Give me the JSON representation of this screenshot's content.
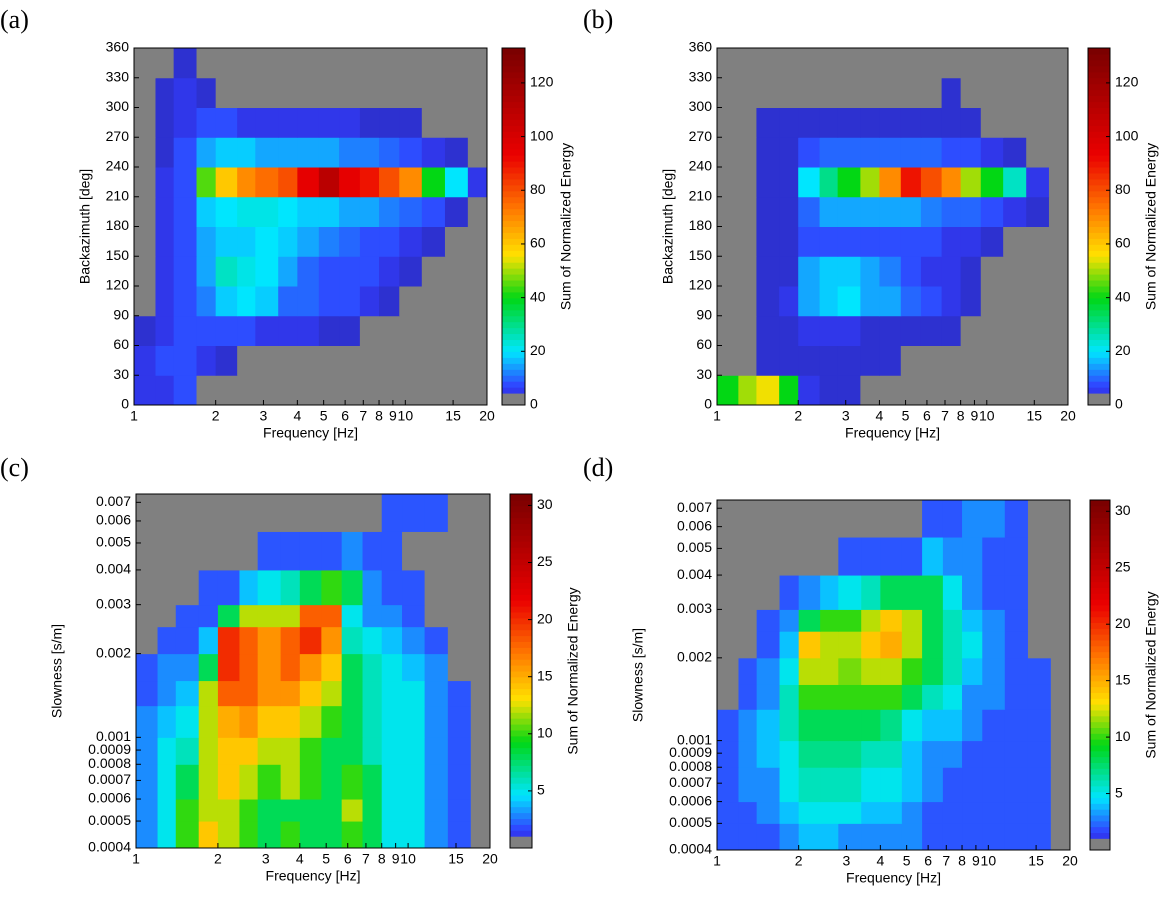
{
  "chart_data": [
    {
      "type": "heatmap",
      "panel_label": "(a)",
      "xlabel": "Frequency [Hz]",
      "ylabel": "Backazimuth [deg]",
      "colorbar_label": "Sum of Normalized Energy",
      "xscale": "log",
      "yscale": "linear",
      "xlim": [
        1,
        20
      ],
      "xticks": [
        1,
        2,
        3,
        4,
        5,
        6,
        7,
        8,
        9,
        10,
        15,
        20
      ],
      "ylim": [
        0,
        360
      ],
      "yticks": [
        0,
        30,
        60,
        90,
        120,
        150,
        180,
        210,
        240,
        270,
        300,
        330,
        360
      ],
      "clim": [
        0,
        133
      ],
      "cticks": [
        0,
        20,
        40,
        60,
        80,
        100,
        120
      ],
      "x_edges": [
        1,
        1.2,
        1.4,
        1.7,
        2,
        2.4,
        2.8,
        3.4,
        4,
        4.8,
        5.7,
        6.8,
        8,
        9.5,
        11.5,
        14,
        17,
        20
      ],
      "y_edges": [
        0,
        30,
        60,
        90,
        120,
        150,
        180,
        210,
        240,
        270,
        300,
        330,
        360
      ],
      "values": [
        [
          5,
          5,
          8,
          0,
          0,
          0,
          0,
          0,
          0,
          0,
          0,
          0,
          0,
          0,
          0,
          0,
          0
        ],
        [
          5,
          8,
          8,
          5,
          3,
          0,
          0,
          0,
          0,
          0,
          0,
          0,
          0,
          0,
          0,
          0,
          0
        ],
        [
          3,
          5,
          8,
          8,
          8,
          8,
          5,
          5,
          5,
          3,
          3,
          0,
          0,
          0,
          0,
          0,
          0
        ],
        [
          0,
          5,
          8,
          12,
          18,
          20,
          18,
          10,
          10,
          8,
          8,
          5,
          3,
          0,
          0,
          0,
          0
        ],
        [
          0,
          5,
          8,
          15,
          25,
          22,
          20,
          15,
          10,
          8,
          8,
          8,
          5,
          3,
          0,
          0,
          0
        ],
        [
          0,
          5,
          8,
          15,
          18,
          18,
          20,
          18,
          15,
          12,
          10,
          8,
          8,
          5,
          3,
          0,
          0
        ],
        [
          0,
          5,
          8,
          18,
          20,
          22,
          22,
          20,
          18,
          18,
          15,
          15,
          12,
          10,
          8,
          3,
          0
        ],
        [
          0,
          5,
          8,
          45,
          60,
          70,
          75,
          80,
          95,
          110,
          95,
          90,
          80,
          70,
          40,
          20,
          5
        ],
        [
          0,
          3,
          8,
          15,
          18,
          18,
          15,
          15,
          15,
          15,
          12,
          12,
          10,
          8,
          5,
          3,
          0
        ],
        [
          0,
          3,
          5,
          8,
          8,
          5,
          5,
          5,
          5,
          5,
          5,
          3,
          3,
          3,
          0,
          0,
          0
        ],
        [
          0,
          3,
          5,
          3,
          0,
          0,
          0,
          0,
          0,
          0,
          0,
          0,
          0,
          0,
          0,
          0,
          0
        ],
        [
          0,
          0,
          3,
          0,
          0,
          0,
          0,
          0,
          0,
          0,
          0,
          0,
          0,
          0,
          0,
          0,
          0
        ]
      ]
    },
    {
      "type": "heatmap",
      "panel_label": "(b)",
      "xlabel": "Frequency [Hz]",
      "ylabel": "Backazimuth [deg]",
      "colorbar_label": "Sum of Normalized Energy",
      "xscale": "log",
      "yscale": "linear",
      "xlim": [
        1,
        20
      ],
      "xticks": [
        1,
        2,
        3,
        4,
        5,
        6,
        7,
        8,
        9,
        10,
        15,
        20
      ],
      "ylim": [
        0,
        360
      ],
      "yticks": [
        0,
        30,
        60,
        90,
        120,
        150,
        180,
        210,
        240,
        270,
        300,
        330,
        360
      ],
      "clim": [
        0,
        133
      ],
      "cticks": [
        0,
        20,
        40,
        60,
        80,
        100,
        120
      ],
      "x_edges": [
        1,
        1.2,
        1.4,
        1.7,
        2,
        2.4,
        2.8,
        3.4,
        4,
        4.8,
        5.7,
        6.8,
        8,
        9.5,
        11.5,
        14,
        17,
        20
      ],
      "y_edges": [
        0,
        30,
        60,
        90,
        120,
        150,
        180,
        210,
        240,
        270,
        300,
        330,
        360
      ],
      "values": [
        [
          40,
          50,
          55,
          40,
          5,
          3,
          3,
          0,
          0,
          0,
          0,
          0,
          0,
          0,
          0,
          0,
          0
        ],
        [
          0,
          0,
          3,
          3,
          3,
          3,
          3,
          3,
          3,
          0,
          0,
          0,
          0,
          0,
          0,
          0,
          0
        ],
        [
          0,
          0,
          3,
          3,
          5,
          5,
          5,
          3,
          3,
          3,
          3,
          3,
          0,
          0,
          0,
          0,
          0
        ],
        [
          0,
          0,
          3,
          5,
          15,
          18,
          20,
          15,
          15,
          10,
          8,
          5,
          3,
          0,
          0,
          0,
          0
        ],
        [
          0,
          0,
          3,
          3,
          15,
          18,
          18,
          15,
          12,
          8,
          5,
          5,
          3,
          0,
          0,
          0,
          0
        ],
        [
          0,
          0,
          3,
          3,
          8,
          8,
          8,
          8,
          8,
          8,
          8,
          5,
          5,
          3,
          0,
          0,
          0
        ],
        [
          0,
          0,
          3,
          3,
          10,
          15,
          15,
          15,
          15,
          15,
          12,
          10,
          10,
          8,
          5,
          3,
          0
        ],
        [
          0,
          0,
          3,
          3,
          20,
          30,
          40,
          50,
          70,
          90,
          80,
          70,
          50,
          40,
          25,
          5,
          0
        ],
        [
          0,
          0,
          3,
          3,
          8,
          10,
          10,
          10,
          10,
          10,
          10,
          8,
          8,
          5,
          3,
          0,
          0
        ],
        [
          0,
          0,
          3,
          3,
          3,
          3,
          3,
          3,
          3,
          3,
          3,
          3,
          3,
          0,
          0,
          0,
          0
        ],
        [
          0,
          0,
          0,
          0,
          0,
          0,
          0,
          0,
          0,
          0,
          0,
          3,
          0,
          0,
          0,
          0,
          0
        ],
        [
          0,
          0,
          0,
          0,
          0,
          0,
          0,
          0,
          0,
          0,
          0,
          0,
          0,
          0,
          0,
          0,
          0
        ]
      ]
    },
    {
      "type": "heatmap",
      "panel_label": "(c)",
      "xlabel": "Frequency [Hz]",
      "ylabel": "Slowness [s/m]",
      "colorbar_label": "Sum of Normalized Energy",
      "xscale": "log",
      "yscale": "log",
      "xlim": [
        1,
        20
      ],
      "xticks": [
        1,
        2,
        3,
        4,
        5,
        6,
        7,
        8,
        9,
        10,
        15,
        20
      ],
      "ylim": [
        0.0004,
        0.0075
      ],
      "yticks": [
        0.0004,
        0.0005,
        0.0006,
        0.0007,
        0.0008,
        0.0009,
        0.001,
        0.002,
        0.003,
        0.004,
        0.005,
        0.006,
        0.007
      ],
      "clim": [
        0,
        31
      ],
      "cticks": [
        5,
        10,
        15,
        20,
        25,
        30
      ],
      "x_edges": [
        1,
        1.2,
        1.4,
        1.7,
        2,
        2.4,
        2.8,
        3.4,
        4,
        4.8,
        5.7,
        6.8,
        8,
        9.5,
        11.5,
        14,
        17,
        20
      ],
      "y_edges": [
        0.0004,
        0.0005,
        0.0006,
        0.0008,
        0.001,
        0.0013,
        0.0016,
        0.002,
        0.0025,
        0.003,
        0.004,
        0.0055,
        0.0075
      ],
      "values": [
        [
          3,
          5,
          10,
          14,
          12,
          10,
          8,
          10,
          8,
          8,
          10,
          8,
          5,
          5,
          3,
          2,
          0
        ],
        [
          3,
          5,
          10,
          12,
          12,
          10,
          8,
          8,
          8,
          8,
          12,
          8,
          5,
          5,
          3,
          2,
          0
        ],
        [
          3,
          5,
          8,
          12,
          14,
          12,
          10,
          12,
          10,
          8,
          10,
          8,
          5,
          5,
          3,
          2,
          0
        ],
        [
          3,
          5,
          6,
          12,
          14,
          14,
          12,
          12,
          10,
          8,
          8,
          6,
          5,
          5,
          3,
          2,
          0
        ],
        [
          3,
          4,
          5,
          12,
          15,
          16,
          14,
          14,
          12,
          10,
          8,
          6,
          5,
          5,
          3,
          2,
          0
        ],
        [
          2,
          3,
          4,
          12,
          18,
          18,
          16,
          16,
          14,
          12,
          8,
          6,
          5,
          5,
          3,
          2,
          0
        ],
        [
          2,
          3,
          3,
          8,
          20,
          18,
          16,
          18,
          16,
          14,
          8,
          6,
          5,
          4,
          3,
          0,
          0
        ],
        [
          0,
          2,
          2,
          4,
          20,
          18,
          16,
          18,
          20,
          16,
          6,
          5,
          4,
          3,
          2,
          0,
          0
        ],
        [
          0,
          0,
          2,
          2,
          8,
          12,
          12,
          12,
          18,
          18,
          5,
          3,
          3,
          2,
          0,
          0,
          0
        ],
        [
          0,
          0,
          0,
          2,
          2,
          4,
          5,
          6,
          8,
          10,
          8,
          3,
          2,
          2,
          0,
          0,
          0
        ],
        [
          0,
          0,
          0,
          0,
          0,
          0,
          2,
          2,
          2,
          2,
          3,
          2,
          2,
          0,
          0,
          0,
          0
        ],
        [
          0,
          0,
          0,
          0,
          0,
          0,
          0,
          0,
          0,
          0,
          0,
          0,
          2,
          2,
          2,
          0,
          0
        ]
      ]
    },
    {
      "type": "heatmap",
      "panel_label": "(d)",
      "xlabel": "Frequency [Hz]",
      "ylabel": "Slowness [s/m]",
      "colorbar_label": "Sum of Normalized Energy",
      "xscale": "log",
      "yscale": "log",
      "xlim": [
        1,
        20
      ],
      "xticks": [
        1,
        2,
        3,
        4,
        5,
        6,
        7,
        8,
        9,
        10,
        15,
        20
      ],
      "ylim": [
        0.0004,
        0.0075
      ],
      "yticks": [
        0.0004,
        0.0005,
        0.0006,
        0.0007,
        0.0008,
        0.0009,
        0.001,
        0.002,
        0.003,
        0.004,
        0.005,
        0.006,
        0.007
      ],
      "clim": [
        0,
        31
      ],
      "cticks": [
        5,
        10,
        15,
        20,
        25,
        30
      ],
      "x_edges": [
        1,
        1.2,
        1.4,
        1.7,
        2,
        2.4,
        2.8,
        3.4,
        4,
        4.8,
        5.7,
        6.8,
        8,
        9.5,
        11.5,
        14,
        17,
        20
      ],
      "y_edges": [
        0.0004,
        0.0005,
        0.0006,
        0.0008,
        0.001,
        0.0013,
        0.0016,
        0.002,
        0.0025,
        0.003,
        0.004,
        0.0055,
        0.0075
      ],
      "values": [
        [
          2,
          2,
          2,
          3,
          4,
          4,
          3,
          3,
          3,
          3,
          2,
          2,
          2,
          2,
          2,
          2,
          0
        ],
        [
          2,
          2,
          3,
          4,
          5,
          5,
          5,
          4,
          4,
          3,
          2,
          2,
          2,
          2,
          2,
          2,
          0
        ],
        [
          2,
          3,
          3,
          5,
          6,
          6,
          6,
          5,
          5,
          4,
          3,
          2,
          2,
          2,
          2,
          2,
          0
        ],
        [
          2,
          3,
          4,
          5,
          7,
          7,
          7,
          6,
          6,
          4,
          3,
          3,
          2,
          2,
          2,
          2,
          0
        ],
        [
          2,
          3,
          4,
          6,
          8,
          8,
          8,
          8,
          7,
          5,
          4,
          4,
          3,
          2,
          2,
          2,
          0
        ],
        [
          0,
          2,
          3,
          6,
          10,
          10,
          10,
          10,
          10,
          8,
          6,
          5,
          3,
          3,
          2,
          2,
          0
        ],
        [
          0,
          2,
          3,
          5,
          12,
          12,
          11,
          12,
          12,
          10,
          8,
          6,
          4,
          3,
          2,
          2,
          0
        ],
        [
          0,
          0,
          2,
          4,
          14,
          12,
          12,
          14,
          15,
          12,
          8,
          6,
          5,
          3,
          2,
          0,
          0
        ],
        [
          0,
          0,
          2,
          3,
          8,
          10,
          10,
          12,
          14,
          12,
          8,
          6,
          4,
          3,
          2,
          0,
          0
        ],
        [
          0,
          0,
          0,
          2,
          3,
          4,
          5,
          6,
          8,
          8,
          8,
          5,
          3,
          2,
          2,
          0,
          0
        ],
        [
          0,
          0,
          0,
          0,
          0,
          0,
          2,
          2,
          2,
          2,
          4,
          3,
          3,
          2,
          2,
          0,
          0
        ],
        [
          0,
          0,
          0,
          0,
          0,
          0,
          0,
          0,
          0,
          0,
          2,
          2,
          3,
          3,
          2,
          0,
          0
        ]
      ]
    }
  ]
}
